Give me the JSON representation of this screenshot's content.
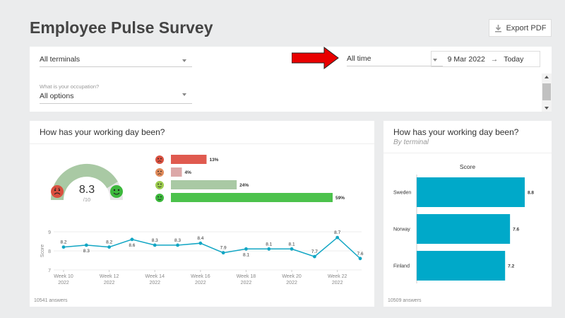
{
  "page": {
    "title": "Employee Pulse Survey"
  },
  "toolbar": {
    "export_label": "Export PDF",
    "export_icon": "download-icon"
  },
  "filters": {
    "terminal": {
      "value": "All terminals"
    },
    "occupation": {
      "label": "What is your occupation?",
      "value": "All options"
    },
    "period": {
      "value": "All time"
    },
    "date_range": {
      "from": "9 Mar 2022",
      "arrow": "→",
      "to": "Today"
    }
  },
  "main_card": {
    "title": "How has your working day been?",
    "answers": "10541 answers",
    "gauge": {
      "value": "8.3",
      "scale": "/10",
      "fill_fraction": 0.83
    },
    "distribution": [
      {
        "mood": "very-unhappy",
        "pct": 13,
        "label": "13%",
        "color": "#e05a4f",
        "face_color": "#d9503f"
      },
      {
        "mood": "unhappy",
        "pct": 4,
        "label": "4%",
        "color": "#dca8a8",
        "face_color": "#e08a5a"
      },
      {
        "mood": "happy",
        "pct": 24,
        "label": "24%",
        "color": "#a9c9a4",
        "face_color": "#9ccc4e"
      },
      {
        "mood": "very-happy",
        "pct": 59,
        "label": "59%",
        "color": "#4cc24c",
        "face_color": "#3cb83c"
      }
    ]
  },
  "side_card": {
    "title": "How has your working day been?",
    "subtitle": "By terminal",
    "answers": "10509 answers"
  },
  "chart_data": [
    {
      "type": "line",
      "ylabel": "Score",
      "ylim": [
        7,
        9
      ],
      "yticks": [
        "9",
        "8",
        "7"
      ],
      "x_ticks": [
        {
          "week": "Week 10",
          "year": "2022"
        },
        {
          "week": "Week 12",
          "year": "2022"
        },
        {
          "week": "Week 14",
          "year": "2022"
        },
        {
          "week": "Week 16",
          "year": "2022"
        },
        {
          "week": "Week 18",
          "year": "2022"
        },
        {
          "week": "Week 20",
          "year": "2022"
        },
        {
          "week": "Week 22",
          "year": "2022"
        }
      ],
      "x": [
        10,
        11,
        12,
        13,
        14,
        15,
        16,
        17,
        18,
        19,
        20,
        21,
        22,
        23
      ],
      "values": [
        8.2,
        8.3,
        8.2,
        8.6,
        8.3,
        8.3,
        8.4,
        7.9,
        8.1,
        8.1,
        8.1,
        7.7,
        8.7,
        7.6
      ],
      "color": "#12a6c4"
    },
    {
      "type": "bar",
      "orientation": "horizontal",
      "title": "Score",
      "categories": [
        "Sweden",
        "Norway",
        "Finland"
      ],
      "values": [
        8.8,
        7.6,
        7.2
      ],
      "color": "#00a9c9"
    }
  ]
}
